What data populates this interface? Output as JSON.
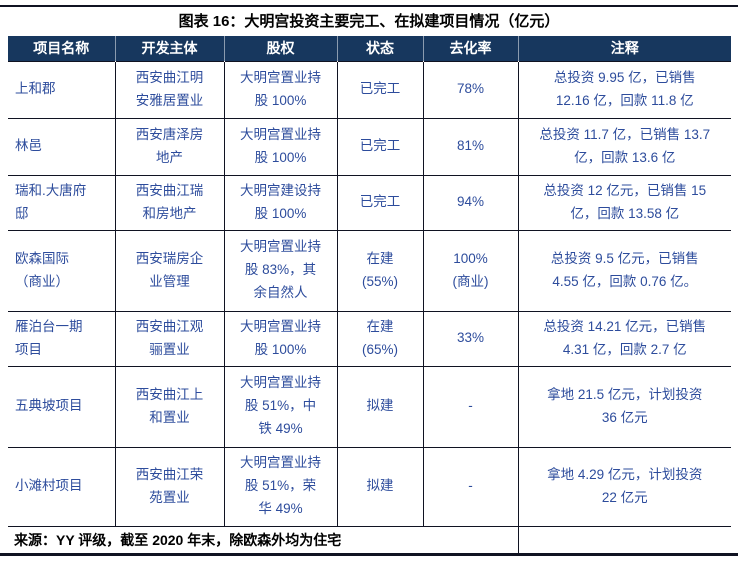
{
  "title": "图表 16：大明宫投资主要完工、在拟建项目情况（亿元）",
  "colors": {
    "header_bg": "#17375E",
    "header_text": "#FFFFFF",
    "body_text": "#2D4C9C",
    "rule": "#101322"
  },
  "table": {
    "headers": [
      "项目名称",
      "开发主体",
      "股权",
      "状态",
      "去化率",
      "注释"
    ],
    "rows": [
      {
        "name": "上和郡",
        "developer": "西安曲江明\n安雅居置业",
        "equity": "大明宫置业持\n股 100%",
        "status": "已完工",
        "rate": "78%",
        "note": "总投资 9.95 亿，已销售\n12.16 亿，回款 11.8 亿"
      },
      {
        "name": "林邑",
        "developer": "西安唐泽房\n地产",
        "equity": "大明宫置业持\n股 100%",
        "status": "已完工",
        "rate": "81%",
        "note": "总投资 11.7 亿，已销售 13.7\n亿，回款 13.6 亿"
      },
      {
        "name": "瑞和.大唐府\n邸",
        "developer": "西安曲江瑞\n和房地产",
        "equity": "大明宫建设持\n股 100%",
        "status": "已完工",
        "rate": "94%",
        "note": "总投资 12 亿元，已销售 15\n亿，回款 13.58 亿"
      },
      {
        "name": "欧森国际\n（商业）",
        "developer": "西安瑞房企\n业管理",
        "equity": "大明宫置业持\n股 83%，其\n余自然人",
        "status": "在建\n(55%)",
        "rate": "100%\n(商业)",
        "note": "总投资 9.5 亿元，已销售\n4.55 亿，回款 0.76 亿。"
      },
      {
        "name": "雁泊台一期\n项目",
        "developer": "西安曲江观\n骊置业",
        "equity": "大明宫置业持\n股 100%",
        "status": "在建\n(65%)",
        "rate": "33%",
        "note": "总投资 14.21 亿元，已销售\n4.31 亿，回款 2.7 亿"
      },
      {
        "name": "五典坡项目",
        "developer": "西安曲江上\n和置业",
        "equity": "大明宫置业持\n股 51%，中\n铁 49%",
        "status": "拟建",
        "rate": "-",
        "note": "拿地 21.5 亿元，计划投资\n36 亿元"
      },
      {
        "name": "小滩村项目",
        "developer": "西安曲江荣\n苑置业",
        "equity": "大明宫置业持\n股 51%，荣\n华 49%",
        "status": "拟建",
        "rate": "-",
        "note": "拿地 4.29 亿元，计划投资\n22 亿元"
      }
    ],
    "source": "来源：YY 评级，截至 2020 年末，除欧森外均为住宅"
  }
}
